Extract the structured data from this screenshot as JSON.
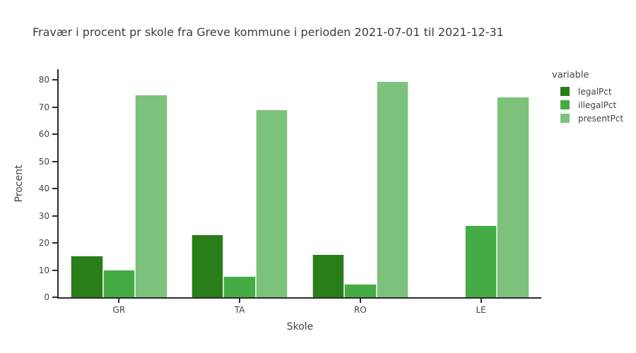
{
  "title": "Fravær i procent pr skole fra Greve kommune i perioden 2021-07-01 til 2021-12-31",
  "chart_data": {
    "type": "bar",
    "categories": [
      "GR",
      "TA",
      "RO",
      "LE"
    ],
    "series": [
      {
        "name": "legalPct",
        "color": "#2a7e19",
        "values": [
          15.0,
          22.9,
          15.5,
          0.0
        ]
      },
      {
        "name": "illegalPct",
        "color": "#45ab45",
        "values": [
          9.9,
          7.5,
          4.7,
          26.2
        ]
      },
      {
        "name": "presentPct",
        "color": "#7cc27a",
        "values": [
          74.5,
          68.9,
          79.4,
          73.6
        ]
      }
    ],
    "xlabel": "Skole",
    "ylabel": "Procent",
    "ylim": [
      0,
      84
    ],
    "yticks": [
      0,
      10,
      20,
      30,
      40,
      50,
      60,
      70,
      80
    ],
    "legend_title": "variable",
    "legend_position": "right",
    "grid": false,
    "bar_mode": "group"
  },
  "colors": {
    "background": "#ffffff",
    "axis_line": "#2b2b2b",
    "text": "#444444"
  }
}
